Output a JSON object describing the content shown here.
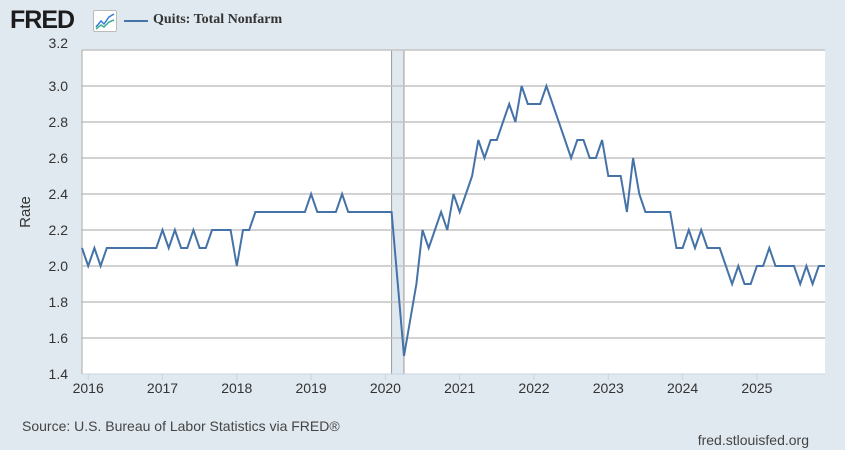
{
  "header": {
    "logo_text": "FRED",
    "series_legend": "Quits: Total Nonfarm"
  },
  "colors": {
    "line": "#4572a7",
    "background": "#e1e9f0",
    "grid": "#c4c4c4",
    "recession": "#e1e9f0"
  },
  "chart_data": {
    "type": "line",
    "title": "Quits: Total Nonfarm",
    "xlabel": "",
    "ylabel": "Rate",
    "ylim": [
      1.4,
      3.2
    ],
    "yticks": [
      "1.4",
      "1.6",
      "1.8",
      "2.0",
      "2.2",
      "2.4",
      "2.6",
      "2.8",
      "3.0",
      "3.2"
    ],
    "xticks": [
      "2016",
      "2017",
      "2018",
      "2019",
      "2020",
      "2021",
      "2022",
      "2023",
      "2024",
      "2025"
    ],
    "grid": true,
    "start": "2015-12",
    "frequency": "monthly",
    "recession": {
      "start": "2020-02",
      "end": "2020-04"
    },
    "series": [
      {
        "name": "Quits: Total Nonfarm",
        "values": [
          2.1,
          2.0,
          2.1,
          2.0,
          2.1,
          2.1,
          2.1,
          2.1,
          2.1,
          2.1,
          2.1,
          2.1,
          2.1,
          2.2,
          2.1,
          2.2,
          2.1,
          2.1,
          2.2,
          2.1,
          2.1,
          2.2,
          2.2,
          2.2,
          2.2,
          2.0,
          2.2,
          2.2,
          2.3,
          2.3,
          2.3,
          2.3,
          2.3,
          2.3,
          2.3,
          2.3,
          2.3,
          2.4,
          2.3,
          2.3,
          2.3,
          2.3,
          2.4,
          2.3,
          2.3,
          2.3,
          2.3,
          2.3,
          2.3,
          2.3,
          2.3,
          1.9,
          1.5,
          1.7,
          1.9,
          2.2,
          2.1,
          2.2,
          2.3,
          2.2,
          2.4,
          2.3,
          2.4,
          2.5,
          2.7,
          2.6,
          2.7,
          2.7,
          2.8,
          2.9,
          2.8,
          3.0,
          2.9,
          2.9,
          2.9,
          3.0,
          2.9,
          2.8,
          2.7,
          2.6,
          2.7,
          2.7,
          2.6,
          2.6,
          2.7,
          2.5,
          2.5,
          2.5,
          2.3,
          2.6,
          2.4,
          2.3,
          2.3,
          2.3,
          2.3,
          2.3,
          2.1,
          2.1,
          2.2,
          2.1,
          2.2,
          2.1,
          2.1,
          2.1,
          2.0,
          1.9,
          2.0,
          1.9,
          1.9,
          2.0,
          2.0,
          2.1,
          2.0,
          2.0,
          2.0,
          2.0,
          1.9,
          2.0,
          1.9,
          2.0,
          2.0
        ]
      }
    ]
  },
  "footer": {
    "source": "Source: U.S. Bureau of Labor Statistics via FRED®",
    "site": "fred.stlouisfed.org"
  }
}
